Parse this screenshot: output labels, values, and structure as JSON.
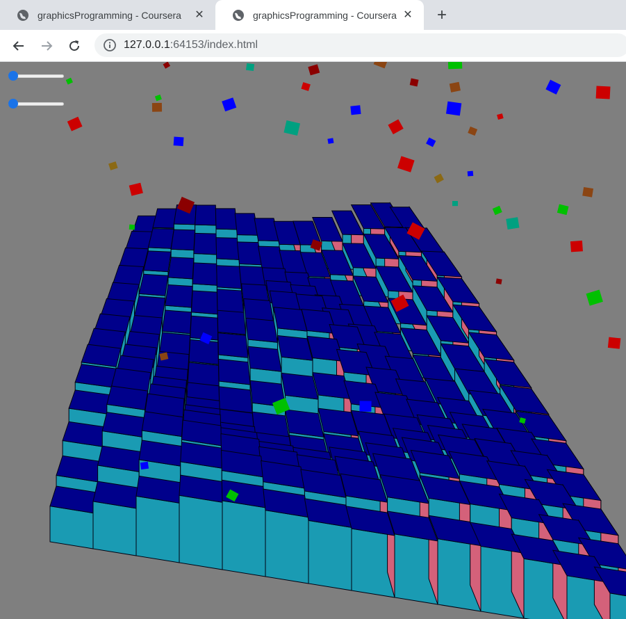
{
  "tabs": [
    {
      "title": "graphicsProgramming - Coursera",
      "active": false,
      "icon": "globe-icon"
    },
    {
      "title": "graphicsProgramming - Coursera",
      "active": true,
      "icon": "globe-icon"
    }
  ],
  "toolbar": {
    "url_host": "127.0.0.1",
    "url_rest": ":64153/index.html"
  },
  "controls": {
    "slider1_value": 0,
    "slider2_value": 0
  },
  "colors": {
    "background": "#7f7f7f",
    "cube_top": "#00008b",
    "cube_side_teal": "#1a9bb3",
    "cube_side_pink": "#d4617a",
    "slider_accent": "#1a73e8"
  }
}
